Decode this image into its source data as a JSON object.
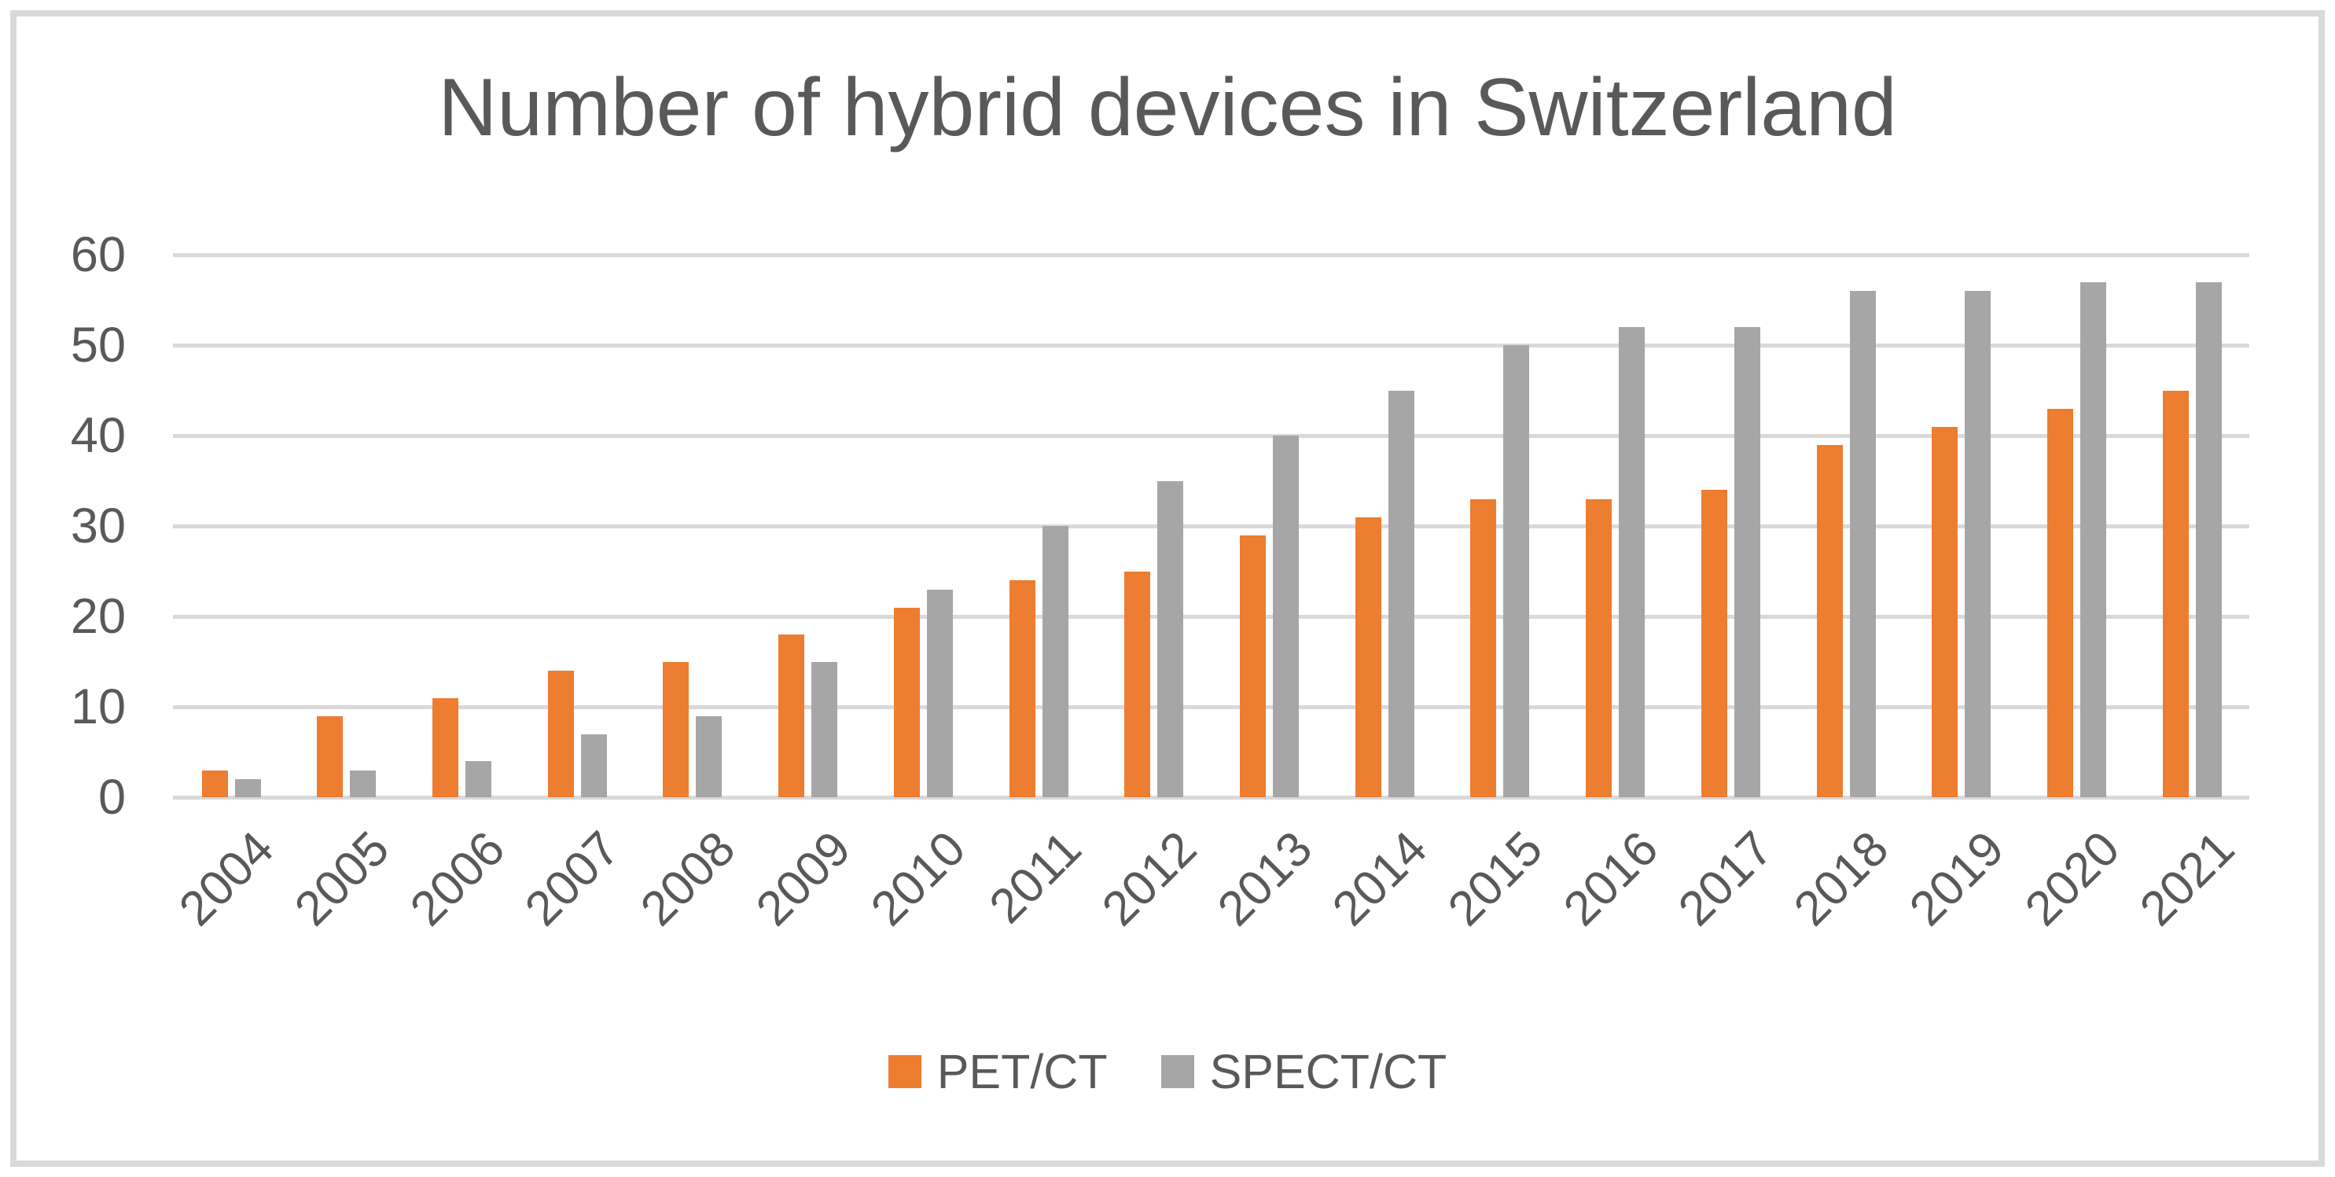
{
  "chart": {
    "title": "Number of hybrid devices in Switzerland",
    "text_color": "#595959",
    "gridline_color": "#D9D9D9",
    "frame_color": "#D9D9D9",
    "background_color": "#FFFFFF"
  },
  "chart_data": {
    "type": "bar",
    "title": "Number of hybrid devices in Switzerland",
    "categories": [
      "2004",
      "2005",
      "2006",
      "2007",
      "2008",
      "2009",
      "2010",
      "2011",
      "2012",
      "2013",
      "2014",
      "2015",
      "2016",
      "2017",
      "2018",
      "2019",
      "2020",
      "2021"
    ],
    "series": [
      {
        "name": "PET/CT",
        "color": "#ED7D31",
        "values": [
          3,
          9,
          11,
          14,
          15,
          18,
          21,
          24,
          25,
          29,
          31,
          33,
          33,
          34,
          39,
          41,
          43,
          45
        ]
      },
      {
        "name": "SPECT/CT",
        "color": "#A6A6A6",
        "values": [
          2,
          3,
          4,
          7,
          9,
          15,
          23,
          30,
          35,
          40,
          45,
          50,
          52,
          52,
          56,
          56,
          57,
          57
        ]
      }
    ],
    "xlabel": "",
    "ylabel": "",
    "ylim": [
      0,
      60
    ],
    "y_ticks": [
      0,
      10,
      20,
      30,
      40,
      50,
      60
    ],
    "grid": true,
    "legend_position": "bottom"
  }
}
